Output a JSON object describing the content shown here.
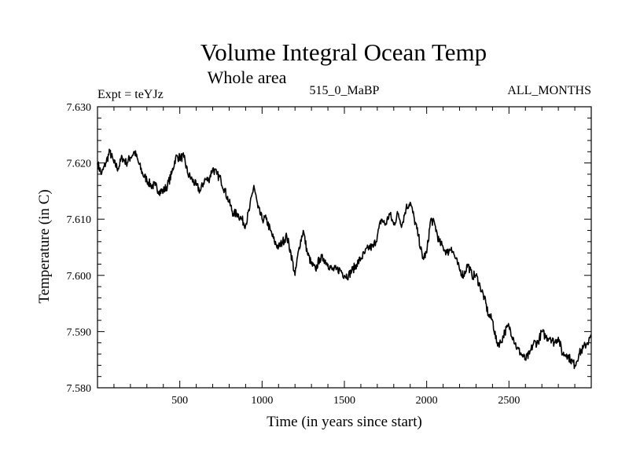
{
  "chart_data": {
    "type": "line",
    "title": "Volume Integral Ocean Temp",
    "subtitle": "Whole area",
    "annotations": {
      "left": "Expt = teYJz",
      "center": "515_0_MaBP",
      "right": "ALL_MONTHS"
    },
    "xlabel": "Time (in years since start)",
    "ylabel": "Temperature (in C)",
    "xlim": [
      0,
      3000
    ],
    "ylim": [
      7.58,
      7.63
    ],
    "x_ticks": [
      500,
      1000,
      1500,
      2000,
      2500
    ],
    "x_tick_labels": [
      "500",
      "1000",
      "1500",
      "2000",
      "2500"
    ],
    "y_ticks": [
      7.58,
      7.59,
      7.6,
      7.61,
      7.62,
      7.63
    ],
    "y_tick_labels": [
      "7.580",
      "7.590",
      "7.600",
      "7.610",
      "7.620",
      "7.630"
    ],
    "grid": false,
    "series": [
      {
        "name": "Volume Integral Ocean Temp",
        "color": "#000000",
        "x": [
          0,
          25,
          50,
          75,
          100,
          125,
          150,
          175,
          200,
          225,
          250,
          275,
          300,
          325,
          350,
          375,
          400,
          425,
          450,
          475,
          500,
          525,
          550,
          575,
          600,
          625,
          650,
          675,
          700,
          725,
          750,
          775,
          800,
          825,
          850,
          875,
          900,
          925,
          950,
          975,
          1000,
          1025,
          1050,
          1075,
          1100,
          1125,
          1150,
          1175,
          1200,
          1225,
          1250,
          1275,
          1300,
          1325,
          1350,
          1375,
          1400,
          1425,
          1450,
          1475,
          1500,
          1525,
          1550,
          1575,
          1600,
          1625,
          1650,
          1675,
          1700,
          1725,
          1750,
          1775,
          1800,
          1825,
          1850,
          1875,
          1900,
          1925,
          1950,
          1975,
          2000,
          2025,
          2050,
          2075,
          2100,
          2125,
          2150,
          2175,
          2200,
          2225,
          2250,
          2275,
          2300,
          2325,
          2350,
          2375,
          2400,
          2425,
          2450,
          2475,
          2500,
          2525,
          2550,
          2575,
          2600,
          2625,
          2650,
          2675,
          2700,
          2725,
          2750,
          2775,
          2800,
          2825,
          2850,
          2875,
          2900,
          2925,
          2950,
          2975,
          3000
        ],
        "y": [
          7.62,
          7.618,
          7.62,
          7.622,
          7.62,
          7.619,
          7.621,
          7.62,
          7.621,
          7.622,
          7.62,
          7.618,
          7.617,
          7.616,
          7.616,
          7.615,
          7.615,
          7.616,
          7.618,
          7.621,
          7.621,
          7.621,
          7.618,
          7.617,
          7.616,
          7.615,
          7.617,
          7.617,
          7.619,
          7.618,
          7.617,
          7.615,
          7.613,
          7.611,
          7.611,
          7.61,
          7.609,
          7.612,
          7.616,
          7.612,
          7.61,
          7.61,
          7.608,
          7.606,
          7.605,
          7.606,
          7.607,
          7.604,
          7.6,
          7.605,
          7.608,
          7.604,
          7.602,
          7.601,
          7.603,
          7.603,
          7.602,
          7.601,
          7.601,
          7.601,
          7.6,
          7.6,
          7.601,
          7.602,
          7.603,
          7.604,
          7.605,
          7.605,
          7.607,
          7.61,
          7.609,
          7.611,
          7.609,
          7.611,
          7.609,
          7.612,
          7.613,
          7.61,
          7.607,
          7.603,
          7.604,
          7.61,
          7.609,
          7.606,
          7.605,
          7.604,
          7.605,
          7.603,
          7.601,
          7.6,
          7.602,
          7.6,
          7.6,
          7.598,
          7.596,
          7.593,
          7.592,
          7.588,
          7.588,
          7.59,
          7.591,
          7.589,
          7.587,
          7.586,
          7.585,
          7.586,
          7.588,
          7.588,
          7.59,
          7.589,
          7.589,
          7.588,
          7.589,
          7.586,
          7.586,
          7.585,
          7.584,
          7.586,
          7.587,
          7.588,
          7.589
        ]
      }
    ]
  }
}
